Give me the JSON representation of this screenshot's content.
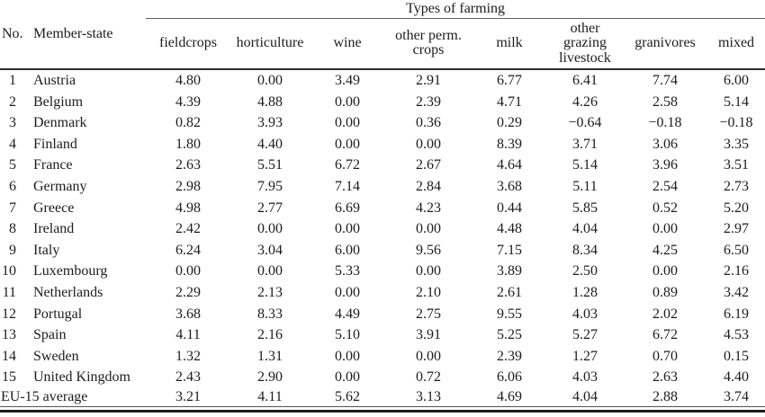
{
  "table": {
    "group_header": "Types of farming",
    "corner": {
      "no": "No.",
      "member_state": "Member-state"
    },
    "farming_columns": [
      "fieldcrops",
      "horticulture",
      "wine",
      "other perm.\ncrops",
      "milk",
      "other\ngrazing\nlivestock",
      "granivores",
      "mixed"
    ],
    "rows": [
      {
        "no": "1",
        "member_state": "Austria",
        "values": [
          "4.80",
          "0.00",
          "3.49",
          "2.91",
          "6.77",
          "6.41",
          "7.74",
          "6.00"
        ]
      },
      {
        "no": "2",
        "member_state": "Belgium",
        "values": [
          "4.39",
          "4.88",
          "0.00",
          "2.39",
          "4.71",
          "4.26",
          "2.58",
          "5.14"
        ]
      },
      {
        "no": "3",
        "member_state": "Denmark",
        "values": [
          "0.82",
          "3.93",
          "0.00",
          "0.36",
          "0.29",
          "−0.64",
          "−0.18",
          "−0.18"
        ]
      },
      {
        "no": "4",
        "member_state": "Finland",
        "values": [
          "1.80",
          "4.40",
          "0.00",
          "0.00",
          "8.39",
          "3.71",
          "3.06",
          "3.35"
        ]
      },
      {
        "no": "5",
        "member_state": "France",
        "values": [
          "2.63",
          "5.51",
          "6.72",
          "2.67",
          "4.64",
          "5.14",
          "3.96",
          "3.51"
        ]
      },
      {
        "no": "6",
        "member_state": "Germany",
        "values": [
          "2.98",
          "7.95",
          "7.14",
          "2.84",
          "3.68",
          "5.11",
          "2.54",
          "2.73"
        ]
      },
      {
        "no": "7",
        "member_state": "Greece",
        "values": [
          "4.98",
          "2.77",
          "6.69",
          "4.23",
          "0.44",
          "5.85",
          "0.52",
          "5.20"
        ]
      },
      {
        "no": "8",
        "member_state": "Ireland",
        "values": [
          "2.42",
          "0.00",
          "0.00",
          "0.00",
          "4.48",
          "4.04",
          "0.00",
          "2.97"
        ]
      },
      {
        "no": "9",
        "member_state": "Italy",
        "values": [
          "6.24",
          "3.04",
          "6.00",
          "9.56",
          "7.15",
          "8.34",
          "4.25",
          "6.50"
        ]
      },
      {
        "no": "10",
        "member_state": "Luxembourg",
        "values": [
          "0.00",
          "0.00",
          "5.33",
          "0.00",
          "3.89",
          "2.50",
          "0.00",
          "2.16"
        ]
      },
      {
        "no": "11",
        "member_state": "Netherlands",
        "values": [
          "2.29",
          "2.13",
          "0.00",
          "2.10",
          "2.61",
          "1.28",
          "0.89",
          "3.42"
        ]
      },
      {
        "no": "12",
        "member_state": "Portugal",
        "values": [
          "3.68",
          "8.33",
          "4.49",
          "2.75",
          "9.55",
          "4.03",
          "2.02",
          "6.19"
        ]
      },
      {
        "no": "13",
        "member_state": "Spain",
        "values": [
          "4.11",
          "2.16",
          "5.10",
          "3.91",
          "5.25",
          "5.27",
          "6.72",
          "4.53"
        ]
      },
      {
        "no": "14",
        "member_state": "Sweden",
        "values": [
          "1.32",
          "1.31",
          "0.00",
          "0.00",
          "2.39",
          "1.27",
          "0.70",
          "0.15"
        ]
      },
      {
        "no": "15",
        "member_state": "United Kingdom",
        "values": [
          "2.43",
          "2.90",
          "0.00",
          "0.72",
          "6.06",
          "4.03",
          "2.63",
          "4.40"
        ]
      }
    ],
    "footer": {
      "label": "EU-15 average",
      "values": [
        "3.21",
        "4.11",
        "5.62",
        "3.13",
        "4.69",
        "4.04",
        "2.88",
        "3.74"
      ]
    }
  }
}
